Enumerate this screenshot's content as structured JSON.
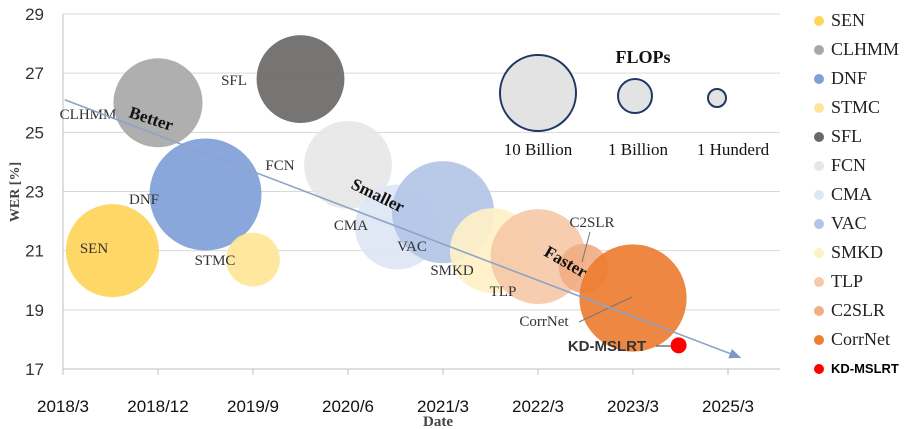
{
  "chart_data": {
    "type": "bubble",
    "xlabel": "Date",
    "ylabel": "WER [%]",
    "ylim": [
      17,
      29
    ],
    "yticks": [
      17,
      19,
      21,
      23,
      25,
      27,
      29
    ],
    "xlim": [
      0,
      7.3
    ],
    "xticks": [
      {
        "label": "2018/3",
        "pos": 0
      },
      {
        "label": "2018/12",
        "pos": 1
      },
      {
        "label": "2019/9",
        "pos": 2
      },
      {
        "label": "2020/6",
        "pos": 3
      },
      {
        "label": "2021/3",
        "pos": 4
      },
      {
        "label": "2022/3",
        "pos": 5
      },
      {
        "label": "2023/3",
        "pos": 6
      },
      {
        "label": "2025/3",
        "pos": 7
      }
    ],
    "series": [
      {
        "name": "SEN",
        "x": 0.52,
        "wer": 21.0,
        "flops_billion": 10.5,
        "color": "#FFD45A",
        "label": "SEN"
      },
      {
        "name": "CLHMM",
        "x": 1.0,
        "wer": 26.0,
        "flops_billion": 9.5,
        "color": "#A8A8A8",
        "label": "CLHMM"
      },
      {
        "name": "DNF",
        "x": 1.5,
        "wer": 22.9,
        "flops_billion": 16,
        "color": "#7F9FD8",
        "label": "DNF"
      },
      {
        "name": "STMC",
        "x": 2.0,
        "wer": 20.7,
        "flops_billion": 2.8,
        "color": "#FFE597",
        "label": "STMC"
      },
      {
        "name": "SFL",
        "x": 2.5,
        "wer": 26.8,
        "flops_billion": 9.2,
        "color": "#6B6868",
        "label": "SFL"
      },
      {
        "name": "FCN",
        "x": 3.0,
        "wer": 23.9,
        "flops_billion": 9.2,
        "color": "#E7E7E7",
        "label": "FCN"
      },
      {
        "name": "CMA",
        "x": 3.52,
        "wer": 21.8,
        "flops_billion": 8.5,
        "color": "#DDE6F4",
        "label": "CMA"
      },
      {
        "name": "VAC",
        "x": 4.0,
        "wer": 22.3,
        "flops_billion": 13,
        "color": "#B3C6E7",
        "label": "VAC"
      },
      {
        "name": "SMKD",
        "x": 4.52,
        "wer": 21.0,
        "flops_billion": 8.5,
        "color": "#FFF0C6",
        "label": "SMKD"
      },
      {
        "name": "TLP",
        "x": 5.0,
        "wer": 20.8,
        "flops_billion": 11,
        "color": "#F6C9A8",
        "label": "TLP"
      },
      {
        "name": "C2SLR",
        "x": 5.48,
        "wer": 20.4,
        "flops_billion": 2.2,
        "color": "#F1AE84",
        "label": "C2SLR"
      },
      {
        "name": "CorrNet",
        "x": 6.0,
        "wer": 19.4,
        "flops_billion": 14.5,
        "color": "#ED7D31",
        "label": "CorrNet"
      },
      {
        "name": "KD-MSLRT",
        "x": 6.48,
        "wer": 17.8,
        "flops_billion": 0.12,
        "color": "#FF0000",
        "label": "KD-MSLRT"
      }
    ],
    "size_legend": {
      "title": "FLOPs",
      "entries": [
        {
          "label": "10 Billion",
          "flops_billion": 10
        },
        {
          "label": "1 Billion",
          "flops_billion": 1
        },
        {
          "label": "1 Hunderd",
          "flops_billion": 0.1
        }
      ]
    },
    "annotations": [
      {
        "text": "Better",
        "x": 0.18,
        "wer": 25.35
      },
      {
        "text": "Smaller",
        "x": 3.3,
        "wer": 22.4
      },
      {
        "text": "Faster",
        "x": 5.08,
        "wer": 19.9
      }
    ],
    "trend_arrow": {
      "from": {
        "x": -0.35,
        "wer": 25.9
      },
      "to": {
        "x": 7.12,
        "wer": 17.4
      }
    }
  }
}
